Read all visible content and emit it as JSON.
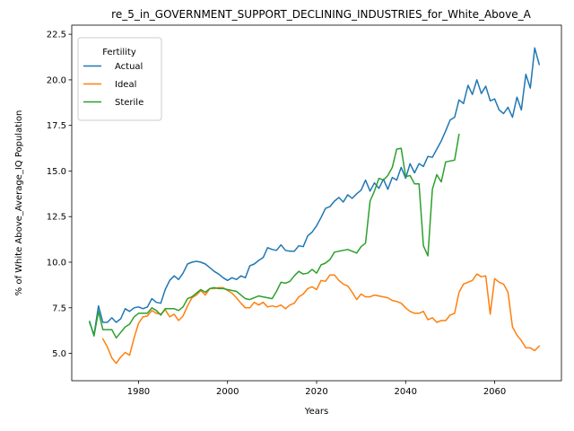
{
  "chart_data": {
    "type": "line",
    "title": "re_5_in_GOVERNMENT_SUPPORT_DECLINING_INDUSTRIES_for_White_Above_A",
    "xlabel": "Years",
    "ylabel": "% of White Above_Average_IQ Population",
    "xlim": [
      1965,
      2075
    ],
    "ylim": [
      3.5,
      23.0
    ],
    "xticks": [
      1980,
      2000,
      2020,
      2040,
      2060
    ],
    "yticks": [
      5.0,
      7.5,
      10.0,
      12.5,
      15.0,
      17.5,
      20.0,
      22.5
    ],
    "ytick_labels": [
      "5.0",
      "7.5",
      "10.0",
      "12.5",
      "15.0",
      "17.5",
      "20.0",
      "22.5"
    ],
    "grid": false,
    "legend": {
      "title": "Fertility",
      "placement": "top-left"
    },
    "series": [
      {
        "name": "Actual",
        "color": "#1f77b4",
        "x": [
          1969,
          1970,
          1971,
          1972,
          1973,
          1974,
          1975,
          1976,
          1977,
          1978,
          1979,
          1980,
          1981,
          1982,
          1983,
          1984,
          1985,
          1986,
          1987,
          1988,
          1989,
          1990,
          1991,
          1992,
          1993,
          1994,
          1995,
          1996,
          1997,
          1998,
          1999,
          2000,
          2001,
          2002,
          2003,
          2004,
          2005,
          2006,
          2007,
          2008,
          2009,
          2010,
          2011,
          2012,
          2013,
          2014,
          2015,
          2016,
          2017,
          2018,
          2019,
          2020,
          2021,
          2022,
          2023,
          2024,
          2025,
          2026,
          2027,
          2028,
          2029,
          2030,
          2031,
          2032,
          2033,
          2034,
          2035,
          2036,
          2037,
          2038,
          2039,
          2040,
          2041,
          2042,
          2043,
          2044,
          2045,
          2046,
          2047,
          2048,
          2049,
          2050,
          2051,
          2052,
          2053,
          2054,
          2055,
          2056,
          2057,
          2058,
          2059,
          2060,
          2061,
          2062,
          2063,
          2064,
          2065,
          2066,
          2067,
          2068,
          2069,
          2070
        ],
        "values": [
          6.7,
          6.0,
          7.6,
          6.7,
          6.7,
          6.95,
          6.7,
          6.9,
          7.45,
          7.3,
          7.5,
          7.55,
          7.45,
          7.55,
          8.0,
          7.8,
          7.75,
          8.5,
          9.0,
          9.25,
          9.05,
          9.4,
          9.9,
          10.0,
          10.05,
          10.0,
          9.9,
          9.7,
          9.5,
          9.35,
          9.15,
          9.0,
          9.15,
          9.05,
          9.25,
          9.15,
          9.8,
          9.9,
          10.1,
          10.25,
          10.8,
          10.7,
          10.65,
          10.95,
          10.65,
          10.6,
          10.6,
          10.9,
          10.85,
          11.45,
          11.65,
          12.0,
          12.45,
          12.95,
          13.05,
          13.35,
          13.55,
          13.3,
          13.7,
          13.5,
          13.75,
          13.95,
          14.5,
          13.9,
          14.35,
          14.05,
          14.55,
          14.0,
          14.65,
          14.5,
          15.2,
          14.6,
          15.4,
          14.9,
          15.4,
          15.25,
          15.8,
          15.75,
          16.2,
          16.65,
          17.2,
          17.8,
          17.95,
          18.9,
          18.7,
          19.7,
          19.2,
          20.0,
          19.25,
          19.65,
          18.85,
          18.95,
          18.35,
          18.15,
          18.5,
          17.95,
          19.05,
          18.35,
          20.3,
          19.55,
          21.75,
          20.85
        ]
      },
      {
        "name": "Ideal",
        "color": "#ff7f0e",
        "x": [
          1972,
          1973,
          1974,
          1975,
          1976,
          1977,
          1978,
          1979,
          1980,
          1981,
          1982,
          1983,
          1984,
          1985,
          1986,
          1987,
          1988,
          1989,
          1990,
          1991,
          1992,
          1993,
          1994,
          1995,
          1996,
          1997,
          1998,
          1999,
          2000,
          2001,
          2002,
          2003,
          2004,
          2005,
          2006,
          2007,
          2008,
          2009,
          2010,
          2011,
          2012,
          2013,
          2014,
          2015,
          2016,
          2017,
          2018,
          2019,
          2020,
          2021,
          2022,
          2023,
          2024,
          2025,
          2026,
          2027,
          2028,
          2029,
          2030,
          2031,
          2032,
          2033,
          2034,
          2035,
          2036,
          2037,
          2038,
          2039,
          2040,
          2041,
          2042,
          2043,
          2044,
          2045,
          2046,
          2047,
          2048,
          2049,
          2050,
          2051,
          2052,
          2053,
          2054,
          2055,
          2056,
          2057,
          2058,
          2059,
          2060,
          2061,
          2062,
          2063,
          2064,
          2065,
          2066,
          2067,
          2068,
          2069,
          2070
        ],
        "values": [
          5.8,
          5.35,
          4.75,
          4.45,
          4.8,
          5.05,
          4.9,
          5.85,
          6.65,
          7.0,
          7.05,
          7.35,
          7.2,
          7.15,
          7.4,
          7.0,
          7.15,
          6.8,
          7.05,
          7.6,
          8.05,
          8.2,
          8.45,
          8.2,
          8.55,
          8.55,
          8.6,
          8.6,
          8.45,
          8.3,
          8.05,
          7.75,
          7.5,
          7.5,
          7.8,
          7.65,
          7.8,
          7.55,
          7.6,
          7.55,
          7.65,
          7.45,
          7.65,
          7.75,
          8.1,
          8.25,
          8.55,
          8.65,
          8.5,
          9.0,
          8.95,
          9.3,
          9.3,
          9.0,
          8.8,
          8.7,
          8.35,
          7.95,
          8.25,
          8.1,
          8.1,
          8.2,
          8.15,
          8.1,
          8.05,
          7.9,
          7.85,
          7.75,
          7.5,
          7.3,
          7.2,
          7.2,
          7.3,
          6.85,
          6.95,
          6.7,
          6.8,
          6.8,
          7.1,
          7.2,
          8.35,
          8.8,
          8.9,
          9.0,
          9.35,
          9.2,
          9.25,
          7.15,
          9.1,
          8.9,
          8.8,
          8.35,
          6.45,
          6.0,
          5.7,
          5.3,
          5.3,
          5.15,
          5.4
        ]
      },
      {
        "name": "Sterile",
        "color": "#2ca02c",
        "x": [
          1969,
          1970,
          1971,
          1972,
          1973,
          1974,
          1975,
          1976,
          1977,
          1978,
          1979,
          1980,
          1981,
          1982,
          1983,
          1984,
          1985,
          1986,
          1987,
          1988,
          1989,
          1990,
          1991,
          1992,
          1993,
          1994,
          1995,
          1996,
          1997,
          1998,
          1999,
          2000,
          2001,
          2002,
          2003,
          2004,
          2005,
          2006,
          2007,
          2008,
          2009,
          2010,
          2011,
          2012,
          2013,
          2014,
          2015,
          2016,
          2017,
          2018,
          2019,
          2020,
          2021,
          2022,
          2023,
          2024,
          2025,
          2026,
          2027,
          2028,
          2029,
          2030,
          2031,
          2032,
          2033,
          2034,
          2035,
          2036,
          2037,
          2038,
          2039,
          2040,
          2041,
          2042,
          2043,
          2044,
          2045,
          2046,
          2047,
          2048,
          2049,
          2050,
          2051,
          2052
        ],
        "values": [
          6.75,
          5.95,
          7.3,
          6.3,
          6.3,
          6.3,
          5.85,
          6.15,
          6.45,
          6.6,
          7.0,
          7.2,
          7.2,
          7.2,
          7.5,
          7.35,
          7.1,
          7.45,
          7.45,
          7.45,
          7.35,
          7.55,
          8.0,
          8.1,
          8.3,
          8.5,
          8.35,
          8.55,
          8.6,
          8.55,
          8.55,
          8.5,
          8.45,
          8.4,
          8.2,
          8.0,
          7.95,
          8.05,
          8.15,
          8.1,
          8.05,
          8.0,
          8.4,
          8.9,
          8.85,
          8.95,
          9.25,
          9.5,
          9.35,
          9.4,
          9.6,
          9.4,
          9.85,
          9.95,
          10.15,
          10.55,
          10.6,
          10.65,
          10.7,
          10.6,
          10.5,
          10.85,
          11.05,
          13.35,
          13.9,
          14.6,
          14.5,
          14.75,
          15.2,
          16.2,
          16.25,
          14.7,
          14.75,
          14.3,
          14.3,
          10.9,
          10.35,
          14.0,
          14.8,
          14.4,
          15.5,
          15.55,
          15.6,
          17.0
        ]
      }
    ]
  }
}
